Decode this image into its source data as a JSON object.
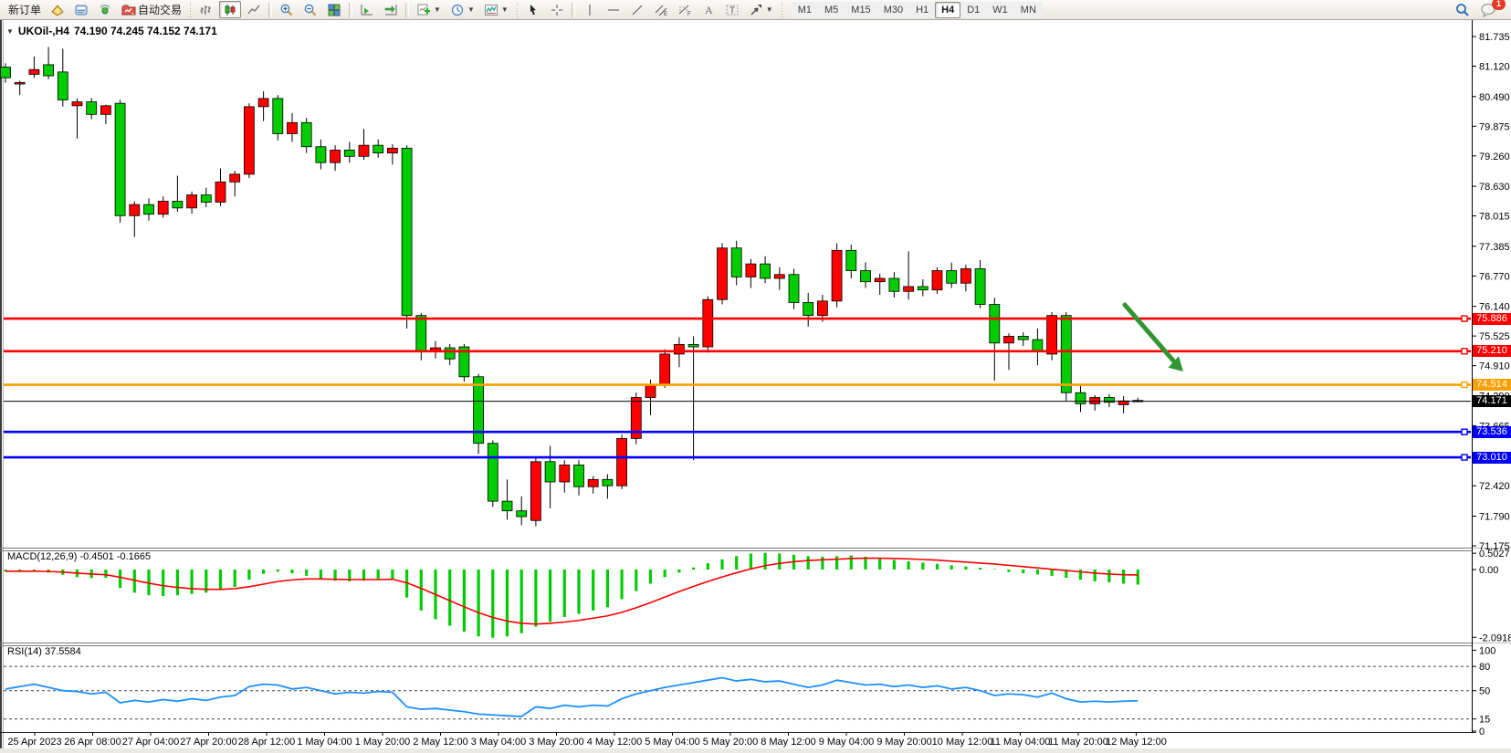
{
  "toolbar": {
    "new_order": "新订单",
    "auto_trading": "自动交易",
    "timeframes": [
      "M1",
      "M5",
      "M15",
      "M30",
      "H1",
      "H4",
      "D1",
      "W1",
      "MN"
    ],
    "active_timeframe": "H4",
    "notification_count": "1",
    "icon_names": [
      "market-watch",
      "data-window",
      "navigator",
      "auto-trading",
      "bar-chart",
      "candlestick-chart",
      "line-chart",
      "zoom-in",
      "zoom-out",
      "tile-windows",
      "chart-shift",
      "auto-scroll",
      "new-chart",
      "profiles",
      "indicators",
      "cursor",
      "crosshair",
      "vertical-line",
      "horizontal-line",
      "trendline",
      "equidistant-channel",
      "fibonacci",
      "text",
      "text-label",
      "arrows",
      "search",
      "chat"
    ]
  },
  "chart_data": {
    "type": "candlestick",
    "symbol": "UKOil-,H4",
    "ohlc_display": "74.190 74.245 74.152 74.171",
    "timeframe": "H4",
    "candle_up_color": "#FF0000",
    "candle_down_color": "#00CC00",
    "price_axis_ticks": [
      "81.735",
      "81.120",
      "80.490",
      "79.875",
      "79.260",
      "78.630",
      "78.015",
      "77.385",
      "76.770",
      "76.140",
      "75.525",
      "74.910",
      "74.290",
      "73.665",
      "72.420",
      "71.790",
      "71.175"
    ],
    "levels": [
      {
        "price": 75.886,
        "label": "75.886",
        "color": "#FF0000"
      },
      {
        "price": 75.21,
        "label": "75.210",
        "color": "#FF0000"
      },
      {
        "price": 74.514,
        "label": "74.514",
        "color": "#FFA000"
      },
      {
        "price": 74.171,
        "label": "74.171",
        "color": "#000000"
      },
      {
        "price": 73.536,
        "label": "73.536",
        "color": "#0000FF"
      },
      {
        "price": 73.01,
        "label": "73.010",
        "color": "#0000FF"
      }
    ],
    "current_price_label": "74.171",
    "time_labels": [
      "25 Apr 2023",
      "26 Apr 08:00",
      "27 Apr 04:00",
      "27 Apr 20:00",
      "28 Apr 12:00",
      "1 May 04:00",
      "1 May 20:00",
      "2 May 12:00",
      "3 May 04:00",
      "3 May 20:00",
      "4 May 12:00",
      "5 May 04:00",
      "5 May 20:00",
      "8 May 12:00",
      "9 May 04:00",
      "9 May 20:00",
      "10 May 12:00",
      "11 May 04:00",
      "11 May 20:00",
      "12 May 12:00"
    ],
    "candles": [
      [
        81.1,
        81.18,
        80.78,
        80.88
      ],
      [
        80.75,
        80.82,
        80.52,
        80.78
      ],
      [
        80.95,
        81.32,
        80.88,
        81.05
      ],
      [
        81.15,
        81.52,
        80.85,
        80.92
      ],
      [
        81.0,
        81.48,
        80.28,
        80.42
      ],
      [
        80.3,
        80.45,
        79.62,
        80.38
      ],
      [
        80.38,
        80.46,
        80.02,
        80.12
      ],
      [
        80.12,
        80.32,
        79.92,
        80.3
      ],
      [
        80.35,
        80.42,
        77.88,
        78.02
      ],
      [
        78.02,
        78.32,
        77.58,
        78.25
      ],
      [
        78.25,
        78.38,
        77.92,
        78.05
      ],
      [
        78.05,
        78.42,
        77.98,
        78.32
      ],
      [
        78.32,
        78.85,
        78.1,
        78.18
      ],
      [
        78.18,
        78.52,
        78.06,
        78.45
      ],
      [
        78.45,
        78.6,
        78.2,
        78.3
      ],
      [
        78.3,
        79.0,
        78.22,
        78.72
      ],
      [
        78.72,
        78.95,
        78.42,
        78.88
      ],
      [
        78.88,
        80.35,
        78.8,
        80.28
      ],
      [
        80.28,
        80.6,
        79.98,
        80.45
      ],
      [
        80.45,
        80.52,
        79.58,
        79.72
      ],
      [
        79.72,
        80.15,
        79.55,
        79.95
      ],
      [
        79.95,
        80.05,
        79.32,
        79.45
      ],
      [
        79.45,
        79.6,
        78.98,
        79.12
      ],
      [
        79.12,
        79.48,
        78.95,
        79.38
      ],
      [
        79.38,
        79.55,
        79.12,
        79.25
      ],
      [
        79.25,
        79.82,
        79.18,
        79.48
      ],
      [
        79.48,
        79.6,
        79.22,
        79.32
      ],
      [
        79.32,
        79.5,
        79.08,
        79.42
      ],
      [
        79.42,
        79.48,
        75.68,
        75.95
      ],
      [
        75.95,
        76.0,
        75.02,
        75.2
      ],
      [
        75.2,
        75.42,
        75.06,
        75.28
      ],
      [
        75.28,
        75.36,
        74.92,
        75.05
      ],
      [
        75.3,
        75.36,
        74.58,
        74.68
      ],
      [
        74.68,
        74.74,
        73.08,
        73.3
      ],
      [
        73.3,
        73.36,
        71.98,
        72.1
      ],
      [
        72.1,
        72.55,
        71.72,
        71.9
      ],
      [
        71.9,
        72.2,
        71.6,
        71.78
      ],
      [
        71.7,
        73.02,
        71.58,
        72.92
      ],
      [
        72.92,
        73.25,
        71.95,
        72.5
      ],
      [
        72.5,
        72.95,
        72.28,
        72.85
      ],
      [
        72.85,
        72.95,
        72.22,
        72.4
      ],
      [
        72.4,
        72.62,
        72.26,
        72.55
      ],
      [
        72.55,
        72.66,
        72.15,
        72.42
      ],
      [
        72.42,
        73.48,
        72.35,
        73.4
      ],
      [
        73.4,
        74.35,
        73.28,
        74.25
      ],
      [
        74.25,
        74.62,
        73.88,
        74.52
      ],
      [
        74.52,
        75.25,
        74.45,
        75.15
      ],
      [
        75.15,
        75.5,
        74.88,
        75.35
      ],
      [
        75.35,
        75.52,
        72.95,
        75.3
      ],
      [
        75.3,
        76.35,
        75.18,
        76.28
      ],
      [
        76.28,
        77.45,
        76.18,
        77.35
      ],
      [
        77.35,
        77.5,
        76.58,
        76.75
      ],
      [
        76.75,
        77.12,
        76.52,
        77.02
      ],
      [
        77.02,
        77.18,
        76.62,
        76.72
      ],
      [
        76.72,
        76.95,
        76.48,
        76.8
      ],
      [
        76.8,
        76.92,
        76.08,
        76.22
      ],
      [
        76.22,
        76.42,
        75.72,
        75.95
      ],
      [
        75.95,
        76.38,
        75.82,
        76.25
      ],
      [
        76.25,
        77.45,
        76.12,
        77.3
      ],
      [
        77.3,
        77.42,
        76.72,
        76.88
      ],
      [
        76.88,
        77.05,
        76.52,
        76.65
      ],
      [
        76.65,
        76.82,
        76.38,
        76.72
      ],
      [
        76.72,
        76.85,
        76.32,
        76.45
      ],
      [
        76.45,
        77.28,
        76.28,
        76.55
      ],
      [
        76.55,
        76.7,
        76.35,
        76.48
      ],
      [
        76.48,
        76.95,
        76.4,
        76.88
      ],
      [
        76.88,
        77.05,
        76.52,
        76.62
      ],
      [
        76.62,
        77.0,
        76.45,
        76.92
      ],
      [
        76.92,
        77.1,
        76.1,
        76.18
      ],
      [
        76.18,
        76.32,
        74.6,
        75.38
      ],
      [
        75.38,
        75.58,
        74.82,
        75.52
      ],
      [
        75.52,
        75.6,
        75.32,
        75.45
      ],
      [
        75.45,
        75.68,
        74.92,
        75.2
      ],
      [
        75.15,
        76.02,
        75.02,
        75.95
      ],
      [
        75.95,
        76.02,
        74.18,
        74.35
      ],
      [
        74.35,
        74.52,
        73.95,
        74.12
      ],
      [
        74.12,
        74.3,
        73.98,
        74.25
      ],
      [
        74.25,
        74.32,
        74.05,
        74.15
      ],
      [
        74.1,
        74.28,
        73.92,
        74.18
      ],
      [
        74.19,
        74.245,
        74.152,
        74.171
      ]
    ],
    "annotation_arrow": {
      "color": "#339433"
    },
    "indicators": {
      "macd": {
        "label": "MACD(12,26,9) -0.4501 -0.1665",
        "axis_ticks": [
          "0.5027",
          "0.00",
          "-2.0918"
        ],
        "histogram_color": "#00CC00",
        "signal_color": "#FF0000",
        "histogram": [
          -0.05,
          -0.06,
          -0.04,
          -0.08,
          -0.15,
          -0.22,
          -0.25,
          -0.24,
          -0.55,
          -0.7,
          -0.78,
          -0.8,
          -0.78,
          -0.74,
          -0.7,
          -0.62,
          -0.52,
          -0.3,
          -0.12,
          -0.05,
          -0.1,
          -0.18,
          -0.28,
          -0.33,
          -0.35,
          -0.33,
          -0.3,
          -0.28,
          -0.85,
          -1.25,
          -1.52,
          -1.72,
          -1.9,
          -2.05,
          -2.09,
          -2.05,
          -1.95,
          -1.75,
          -1.6,
          -1.45,
          -1.35,
          -1.25,
          -1.15,
          -0.9,
          -0.65,
          -0.42,
          -0.22,
          -0.08,
          0.05,
          0.18,
          0.3,
          0.4,
          0.48,
          0.5,
          0.48,
          0.44,
          0.4,
          0.38,
          0.4,
          0.42,
          0.38,
          0.33,
          0.28,
          0.24,
          0.2,
          0.16,
          0.12,
          0.08,
          0.04,
          0.0,
          -0.06,
          -0.1,
          -0.14,
          -0.18,
          -0.24,
          -0.3,
          -0.35,
          -0.38,
          -0.42,
          -0.4501
        ],
        "signal": [
          -0.05,
          -0.05,
          -0.05,
          -0.06,
          -0.08,
          -0.11,
          -0.14,
          -0.16,
          -0.24,
          -0.33,
          -0.42,
          -0.5,
          -0.55,
          -0.59,
          -0.61,
          -0.61,
          -0.59,
          -0.53,
          -0.45,
          -0.37,
          -0.32,
          -0.29,
          -0.29,
          -0.3,
          -0.31,
          -0.31,
          -0.31,
          -0.3,
          -0.41,
          -0.58,
          -0.77,
          -0.96,
          -1.15,
          -1.33,
          -1.48,
          -1.59,
          -1.66,
          -1.68,
          -1.66,
          -1.62,
          -1.57,
          -1.5,
          -1.43,
          -1.32,
          -1.18,
          -1.02,
          -0.85,
          -0.68,
          -0.52,
          -0.37,
          -0.23,
          -0.1,
          0.02,
          0.12,
          0.19,
          0.24,
          0.28,
          0.3,
          0.32,
          0.34,
          0.35,
          0.35,
          0.34,
          0.33,
          0.31,
          0.29,
          0.26,
          0.23,
          0.2,
          0.17,
          0.13,
          0.09,
          0.05,
          0.01,
          -0.03,
          -0.07,
          -0.11,
          -0.14,
          -0.16,
          -0.1665
        ]
      },
      "rsi": {
        "label": "RSI(14) 37.5584",
        "axis_ticks": [
          100,
          80,
          50,
          15,
          0
        ],
        "dashed_levels": [
          80,
          50,
          15
        ],
        "line_color": "#1E90FF",
        "values": [
          52,
          55,
          58,
          54,
          50,
          49,
          46,
          48,
          35,
          38,
          36,
          39,
          37,
          40,
          38,
          42,
          44,
          55,
          58,
          57,
          52,
          54,
          50,
          46,
          48,
          47,
          49,
          48,
          30,
          27,
          28,
          26,
          24,
          21,
          20,
          19,
          18,
          30,
          28,
          32,
          30,
          32,
          31,
          40,
          46,
          50,
          54,
          57,
          60,
          63,
          66,
          62,
          64,
          61,
          62,
          58,
          54,
          57,
          63,
          60,
          57,
          58,
          55,
          57,
          54,
          56,
          52,
          54,
          50,
          44,
          46,
          45,
          42,
          47,
          40,
          36,
          37,
          36,
          37,
          37.5584
        ]
      }
    }
  }
}
